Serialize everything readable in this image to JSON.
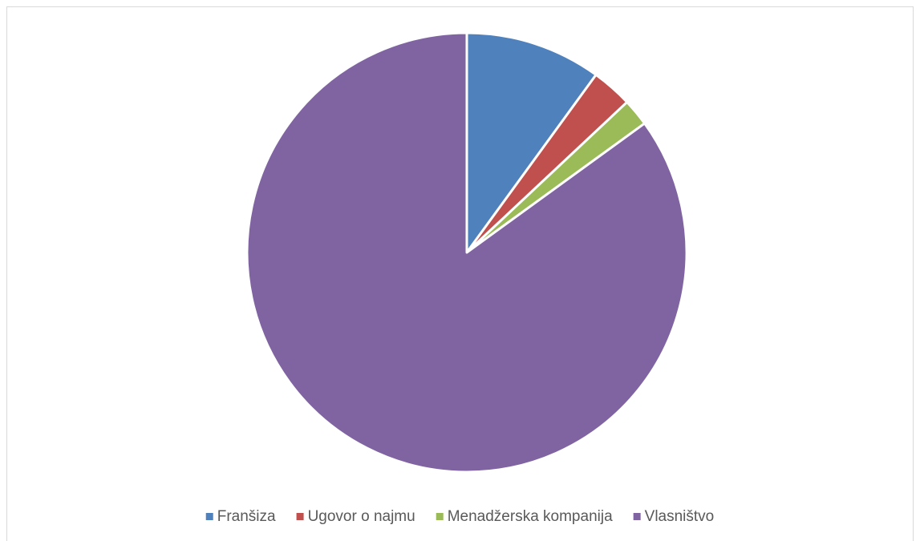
{
  "chart_data": {
    "type": "pie",
    "categories": [
      "Franšiza",
      "Ugovor o najmu",
      "Menadžerska kompanija",
      "Vlasništvo"
    ],
    "values": [
      10,
      3,
      2,
      85
    ],
    "colors": [
      "#4f81bd",
      "#c0504d",
      "#9bbb59",
      "#8064a2"
    ],
    "legend": "bottom"
  }
}
